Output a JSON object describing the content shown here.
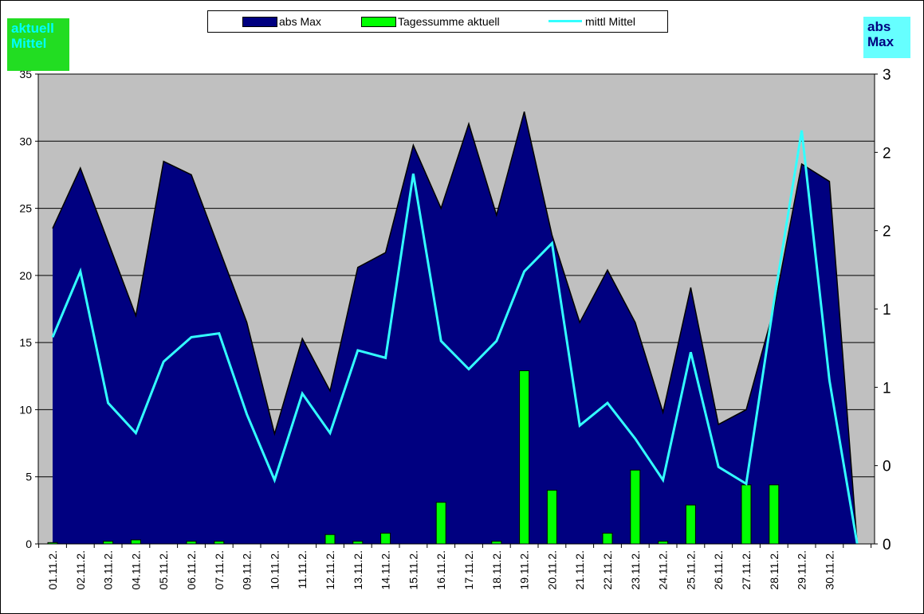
{
  "badges": {
    "left": {
      "text_line1": "aktuell",
      "text_line2": "Mittel",
      "bg": "#22dd22",
      "fg": "#00ffff"
    },
    "right": {
      "text_line1": "abs",
      "text_line2": "Max",
      "bg": "#66ffff",
      "fg": "#000080"
    }
  },
  "legend": {
    "items": [
      {
        "label": "abs Max",
        "color": "#000080",
        "kind": "area"
      },
      {
        "label": "Tagessumme aktuell",
        "color": "#00ff00",
        "kind": "bar"
      },
      {
        "label": "mittl Mittel",
        "color": "#33ffff",
        "kind": "line"
      }
    ]
  },
  "chart_data": {
    "type": "area",
    "categories": [
      "01.11.2.",
      "02.11.2.",
      "03.11.2.",
      "04.11.2.",
      "05.11.2.",
      "06.11.2.",
      "07.11.2.",
      "09.11.2.",
      "10.11.2.",
      "11.11.2.",
      "12.11.2.",
      "13.11.2.",
      "14.11.2.",
      "15.11.2.",
      "16.11.2.",
      "17.11.2.",
      "18.11.2.",
      "19.11.2.",
      "20.11.2.",
      "21.11.2.",
      "22.11.2.",
      "23.11.2.",
      "24.11.2.",
      "25.11.2.",
      "26.11.2.",
      "27.11.2.",
      "28.11.2.",
      "29.11.2.",
      "30.11.2.",
      ""
    ],
    "series": [
      {
        "name": "abs Max",
        "type": "area",
        "axis": "left",
        "values": [
          23.5,
          28.0,
          22.5,
          17.0,
          28.5,
          27.5,
          22.0,
          16.5,
          8.2,
          15.3,
          11.4,
          20.6,
          21.7,
          29.7,
          25.0,
          31.3,
          24.5,
          32.2,
          23.0,
          16.5,
          20.4,
          16.5,
          9.8,
          19.1,
          8.9,
          10.0,
          17.5,
          28.3,
          27.0,
          0
        ]
      },
      {
        "name": "Tagessumme aktuell",
        "type": "bar",
        "axis": "left",
        "values": [
          0.1,
          0,
          0.2,
          0.3,
          0,
          0.2,
          0.2,
          0,
          0,
          0,
          0.7,
          0.2,
          0.8,
          0,
          3.1,
          0,
          0.2,
          12.9,
          4.0,
          0,
          0.8,
          5.5,
          0.2,
          2.9,
          0,
          4.4,
          4.4,
          0,
          0,
          0
        ]
      },
      {
        "name": "mittl Mittel",
        "type": "line",
        "axis": "right",
        "values": [
          1.1,
          1.45,
          0.75,
          0.59,
          0.97,
          1.1,
          1.12,
          0.69,
          0.34,
          0.8,
          0.59,
          1.03,
          0.99,
          1.97,
          1.08,
          0.93,
          1.08,
          1.45,
          1.6,
          0.63,
          0.75,
          0.56,
          0.34,
          1.02,
          0.41,
          0.32,
          1.29,
          2.2,
          0.87,
          0
        ]
      }
    ],
    "left_axis": {
      "ylim": [
        0,
        35
      ],
      "ticks": [
        "0",
        "5",
        "10",
        "15",
        "20",
        "25",
        "30",
        "35"
      ]
    },
    "right_axis": {
      "ylim": [
        0,
        2.5
      ],
      "ticks": [
        "0",
        "0",
        "1",
        "1",
        "2",
        "2",
        "3"
      ]
    },
    "grid": true,
    "plot_bg": "#c0c0c0",
    "legend_position": "top-center"
  }
}
